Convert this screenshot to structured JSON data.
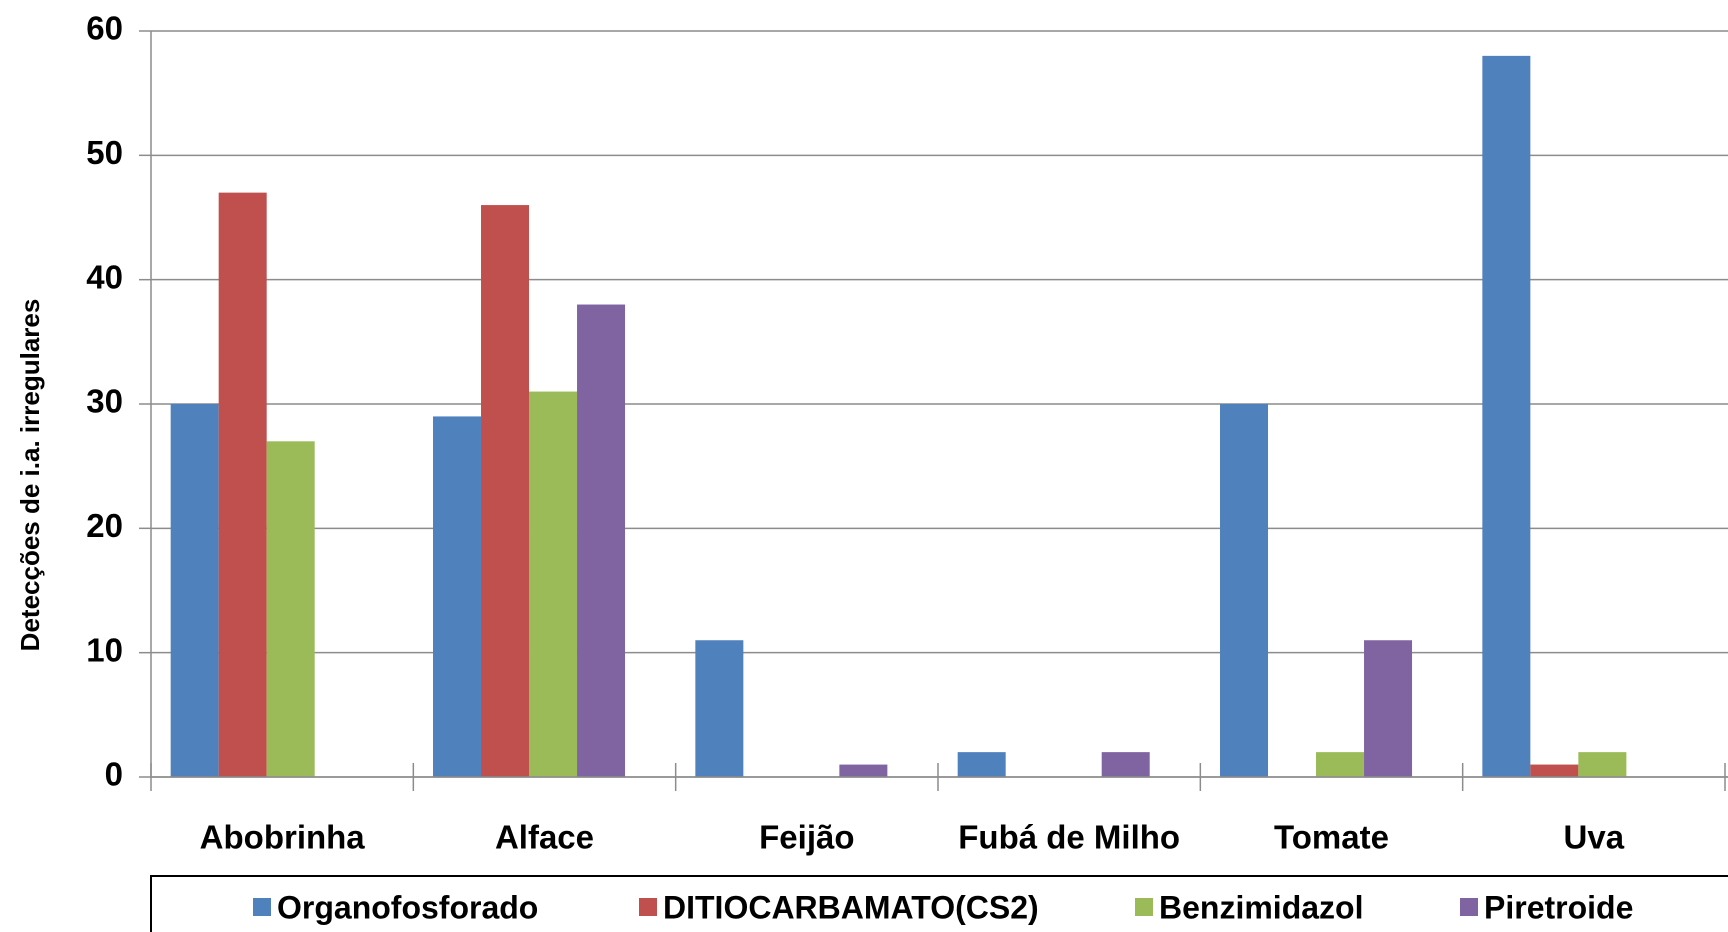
{
  "chart_data": {
    "type": "bar",
    "y_label": "Detecções de i.a. irregulares",
    "categories": [
      "Abobrinha",
      "Alface",
      "Feijão",
      "Fubá de Milho",
      "Tomate",
      "Uva"
    ],
    "series": [
      {
        "name": "Organofosforado",
        "color": "#4f81bd",
        "values": [
          30,
          29,
          11,
          2,
          30,
          58
        ]
      },
      {
        "name": "DITIOCARBAMATO(CS2)",
        "color": "#c0504d",
        "values": [
          47,
          46,
          0,
          0,
          0,
          1
        ]
      },
      {
        "name": "Benzimidazol",
        "color": "#9bbb59",
        "values": [
          27,
          31,
          0,
          0,
          2,
          2
        ]
      },
      {
        "name": "Piretroide",
        "color": "#8064a2",
        "values": [
          0,
          38,
          1,
          2,
          11,
          0
        ]
      }
    ],
    "ylim": [
      0,
      60
    ],
    "yticks": [
      0,
      10,
      20,
      30,
      40,
      50,
      60
    ],
    "grid": true,
    "legend": "bottom"
  }
}
